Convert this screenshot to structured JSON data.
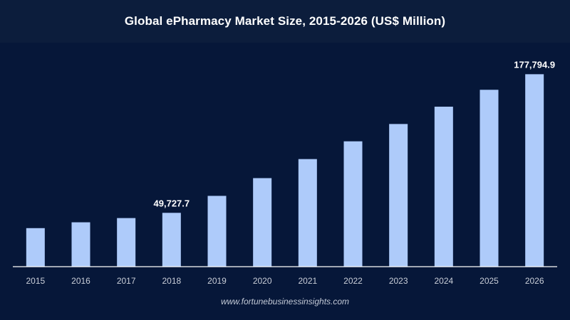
{
  "title": "Global ePharmacy Market Size, 2015-2026 (US$ Million)",
  "source": "www.fortunebusinessinsights.com",
  "colors": {
    "background": "#061739",
    "title_bar": "#0c1d3c",
    "bar": "#aecbfa",
    "axis": "#ffffff",
    "tick_label": "#c9ced8",
    "data_label": "#ffffff"
  },
  "chart_data": {
    "type": "bar",
    "title": "Global ePharmacy Market Size, 2015-2026 (US$ Million)",
    "xlabel": "",
    "ylabel": "",
    "categories": [
      "2015",
      "2016",
      "2017",
      "2018",
      "2019",
      "2020",
      "2021",
      "2022",
      "2023",
      "2024",
      "2025",
      "2026"
    ],
    "values": [
      35600,
      41000,
      44900,
      49727.7,
      65400,
      81800,
      99400,
      115800,
      131800,
      147800,
      163400,
      177794.9
    ],
    "data_labels": [
      {
        "category": "2018",
        "text": "49,727.7"
      },
      {
        "category": "2026",
        "text": "177,794.9"
      }
    ],
    "ylim": [
      0,
      180000
    ],
    "grid": false,
    "legend": "none"
  }
}
